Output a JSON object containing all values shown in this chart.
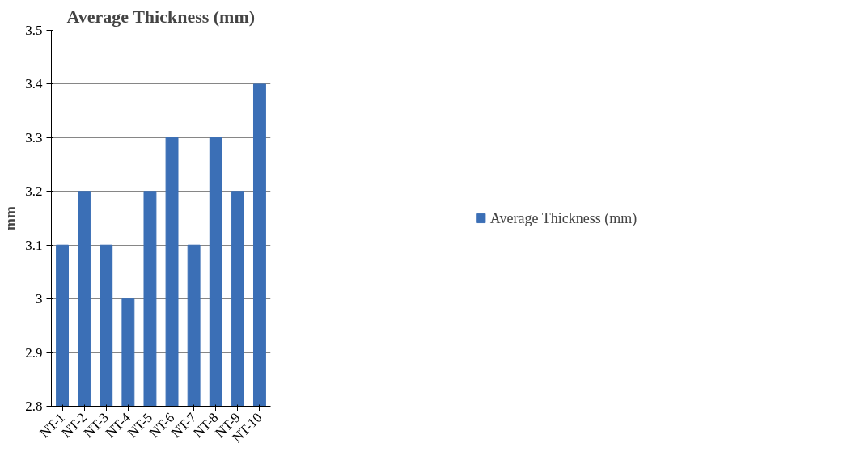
{
  "chart_data": {
    "type": "bar",
    "title": "Average Thickness (mm)",
    "ylabel": "mm",
    "categories": [
      "NT-1",
      "NT-2",
      "NT-3",
      "NT-4",
      "NT-5",
      "NT-6",
      "NT-7",
      "NT-8",
      "NT-9",
      "NT-10"
    ],
    "series": [
      {
        "name": "Average Thickness (mm)",
        "color": "#3b6fb6",
        "values": [
          3.1,
          3.2,
          3.1,
          3.0,
          3.2,
          3.3,
          3.1,
          3.3,
          3.2,
          3.4
        ]
      }
    ],
    "ylim": [
      2.8,
      3.5
    ],
    "yticks": [
      2.8,
      2.9,
      3,
      3.1,
      3.2,
      3.3,
      3.4,
      3.5
    ],
    "grid": "y",
    "legend": "right"
  }
}
